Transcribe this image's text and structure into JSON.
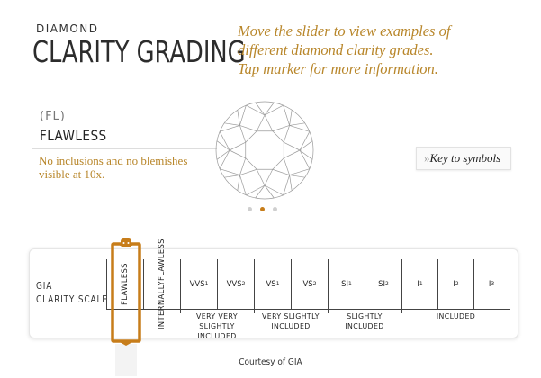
{
  "header": {
    "pre_title": "DIAMOND",
    "title": "CLARITY GRADING",
    "instructions": [
      "Move the slider to view examples of",
      "different diamond clarity grades.",
      "Tap marker for more information."
    ]
  },
  "current_grade": {
    "code": "(FL)",
    "name": "FLAWLESS",
    "description": "No inclusions and no blemishes visible at 10x."
  },
  "carousel": {
    "count": 3,
    "active_index": 1
  },
  "key_button": {
    "chevron": "»",
    "label": "Key to symbols"
  },
  "scale": {
    "label_line1": "GIA",
    "label_line2": "CLARITY SCALE",
    "grades": [
      {
        "id": "fl",
        "text": "FLAWLESS",
        "vertical": true
      },
      {
        "id": "if",
        "line1": "INTERNALLY",
        "line2": "FLAWLESS",
        "vertical": true
      },
      {
        "id": "vvs1",
        "base": "VVS",
        "sub": "1"
      },
      {
        "id": "vvs2",
        "base": "VVS",
        "sub": "2"
      },
      {
        "id": "vs1",
        "base": "VS",
        "sub": "1"
      },
      {
        "id": "vs2",
        "base": "VS",
        "sub": "2"
      },
      {
        "id": "si1",
        "base": "SI",
        "sub": "1"
      },
      {
        "id": "si2",
        "base": "SI",
        "sub": "2"
      },
      {
        "id": "i1",
        "base": "I",
        "sub": "1"
      },
      {
        "id": "i2",
        "base": "I",
        "sub": "2"
      },
      {
        "id": "i3",
        "base": "I",
        "sub": "3"
      }
    ],
    "groups": {
      "very_very_line1": "VERY VERY",
      "very_very_line2": "SLIGHTLY INCLUDED",
      "very_slightly": "VERY SLIGHTLY",
      "very_slightly_line2": "INCLUDED",
      "slightly": "SLIGHTLY INCLUDED",
      "included": "INCLUDED"
    },
    "selected_grade": "FLAWLESS"
  },
  "footer": {
    "credit": "Courtesy of GIA"
  },
  "colors": {
    "accent": "#b8862a",
    "marker": "#c77d1a",
    "text": "#222222"
  },
  "icons": {
    "key_button": "double-chevron-right-icon",
    "marker": "slider-marker-icon"
  }
}
